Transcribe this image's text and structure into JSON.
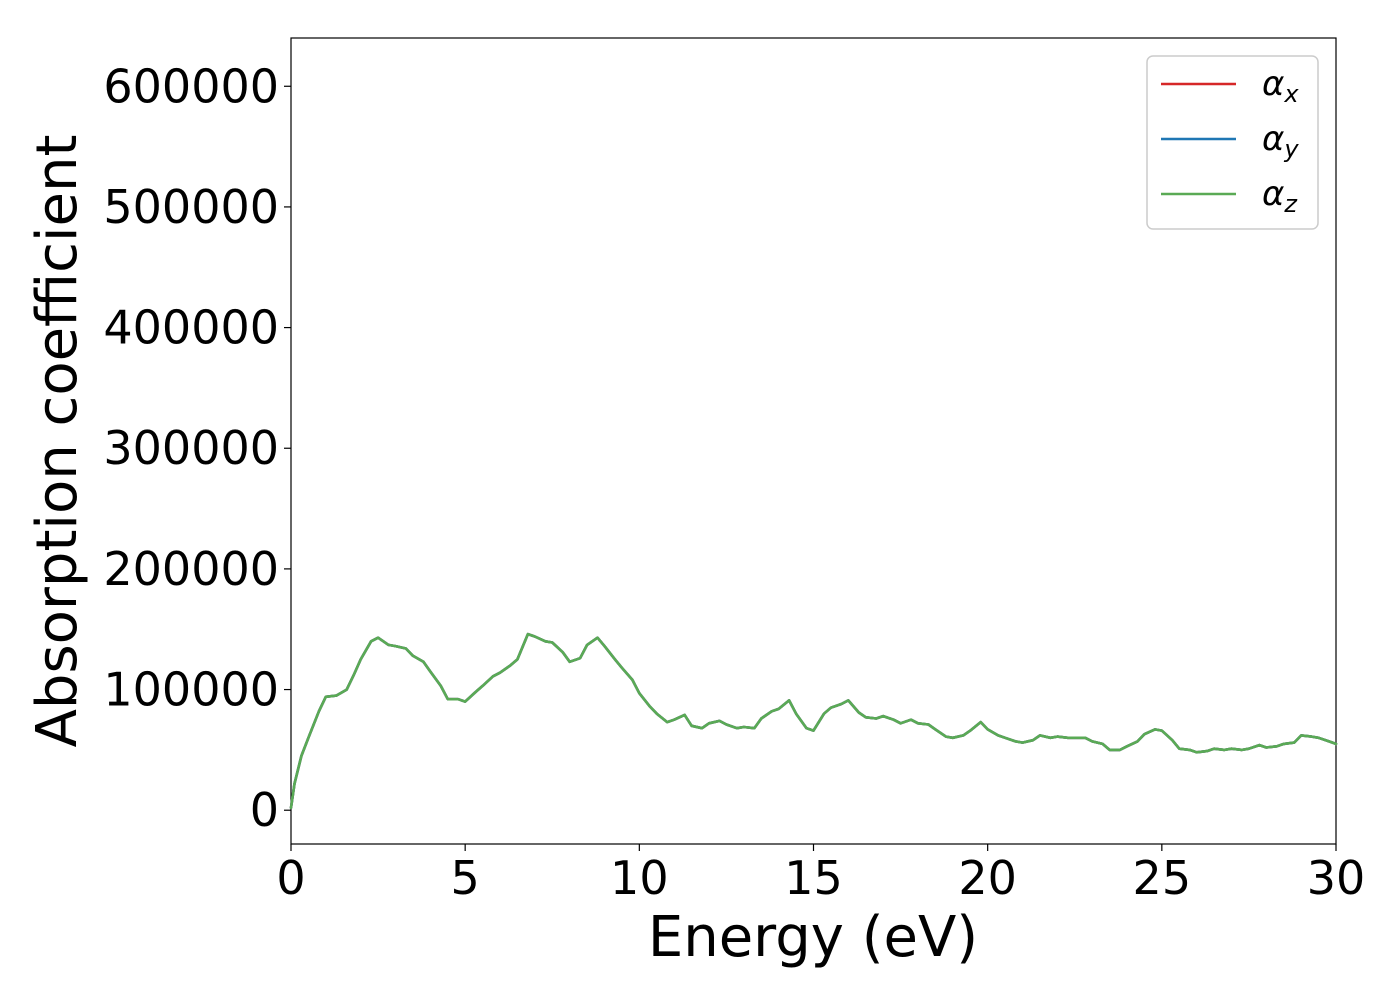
{
  "chart_data": {
    "type": "line",
    "title": "",
    "xlabel": "Energy (eV)",
    "ylabel": "Absorption coefficient",
    "xlim": [
      0,
      30
    ],
    "ylim": [
      -28000,
      640000
    ],
    "xticks": [
      0,
      5,
      10,
      15,
      20,
      25,
      30
    ],
    "yticks": [
      0,
      100000,
      200000,
      300000,
      400000,
      500000,
      600000
    ],
    "xtick_labels": [
      "0",
      "5",
      "10",
      "15",
      "20",
      "25",
      "30"
    ],
    "ytick_labels": [
      "0",
      "100000",
      "200000",
      "300000",
      "400000",
      "500000",
      "600000"
    ],
    "grid": false,
    "legend_position": "top-right",
    "x": [
      0,
      0.1,
      0.3,
      0.5,
      0.8,
      1.0,
      1.3,
      1.6,
      1.8,
      2.0,
      2.3,
      2.5,
      2.8,
      3.0,
      3.3,
      3.5,
      3.8,
      4.0,
      4.3,
      4.5,
      4.8,
      5.0,
      5.3,
      5.5,
      5.8,
      6.0,
      6.3,
      6.5,
      6.8,
      7.0,
      7.3,
      7.5,
      7.8,
      8.0,
      8.3,
      8.5,
      8.8,
      9.0,
      9.3,
      9.5,
      9.8,
      10.0,
      10.3,
      10.5,
      10.8,
      11.0,
      11.3,
      11.5,
      11.8,
      12.0,
      12.3,
      12.5,
      12.8,
      13.0,
      13.3,
      13.5,
      13.8,
      14.0,
      14.3,
      14.5,
      14.8,
      15.0,
      15.3,
      15.5,
      15.8,
      16.0,
      16.3,
      16.5,
      16.8,
      17.0,
      17.3,
      17.5,
      17.8,
      18.0,
      18.3,
      18.5,
      18.8,
      19.0,
      19.3,
      19.5,
      19.8,
      20.0,
      20.3,
      20.5,
      20.8,
      21.0,
      21.3,
      21.5,
      21.8,
      22.0,
      22.3,
      22.5,
      22.8,
      23.0,
      23.3,
      23.5,
      23.8,
      24.0,
      24.3,
      24.5,
      24.8,
      25.0,
      25.3,
      25.5,
      25.8,
      26.0,
      26.3,
      26.5,
      26.8,
      27.0,
      27.3,
      27.5,
      27.8,
      28.0,
      28.3,
      28.5,
      28.8,
      29.0,
      29.3,
      29.5,
      29.8,
      30.0
    ],
    "series": [
      {
        "name": "α_x",
        "color": "#d62728",
        "values": [
          2000,
          22000,
          45000,
          60000,
          82000,
          94000,
          95000,
          100000,
          112000,
          125000,
          140000,
          143000,
          137000,
          136000,
          134000,
          128000,
          123000,
          115000,
          103000,
          92000,
          92000,
          90000,
          98000,
          103000,
          111000,
          114000,
          120000,
          125000,
          146000,
          144000,
          140000,
          139000,
          131000,
          123000,
          126000,
          137000,
          143000,
          136000,
          125000,
          118000,
          108000,
          97000,
          86000,
          80000,
          73000,
          75000,
          79000,
          70000,
          68000,
          72000,
          74000,
          71000,
          68000,
          69000,
          68000,
          76000,
          82000,
          84000,
          91000,
          80000,
          68000,
          66000,
          80000,
          85000,
          88000,
          91000,
          81000,
          77000,
          76000,
          78000,
          75000,
          72000,
          75000,
          72000,
          71000,
          67000,
          61000,
          60000,
          62000,
          66000,
          73000,
          67000,
          62000,
          60000,
          57000,
          56000,
          58000,
          62000,
          60000,
          61000,
          60000,
          60000,
          60000,
          57000,
          55000,
          50000,
          50000,
          53000,
          57000,
          63000,
          67000,
          66000,
          58000,
          51000,
          50000,
          48000,
          49000,
          51000,
          50000,
          51000,
          50000,
          51000,
          54000,
          52000,
          53000,
          55000,
          56000,
          62000,
          61000,
          60000,
          57000,
          55000
        ]
      },
      {
        "name": "α_y",
        "color": "#1f77b4",
        "values": [
          2000,
          22000,
          45000,
          60000,
          82000,
          94000,
          95000,
          100000,
          112000,
          125000,
          140000,
          143000,
          137000,
          136000,
          134000,
          128000,
          123000,
          115000,
          103000,
          92000,
          92000,
          90000,
          98000,
          103000,
          111000,
          114000,
          120000,
          125000,
          146000,
          144000,
          140000,
          139000,
          131000,
          123000,
          126000,
          137000,
          143000,
          136000,
          125000,
          118000,
          108000,
          97000,
          86000,
          80000,
          73000,
          75000,
          79000,
          70000,
          68000,
          72000,
          74000,
          71000,
          68000,
          69000,
          68000,
          76000,
          82000,
          84000,
          91000,
          80000,
          68000,
          66000,
          80000,
          85000,
          88000,
          91000,
          81000,
          77000,
          76000,
          78000,
          75000,
          72000,
          75000,
          72000,
          71000,
          67000,
          61000,
          60000,
          62000,
          66000,
          73000,
          67000,
          62000,
          60000,
          57000,
          56000,
          58000,
          62000,
          60000,
          61000,
          60000,
          60000,
          60000,
          57000,
          55000,
          50000,
          50000,
          53000,
          57000,
          63000,
          67000,
          66000,
          58000,
          51000,
          50000,
          48000,
          49000,
          51000,
          50000,
          51000,
          50000,
          51000,
          54000,
          52000,
          53000,
          55000,
          56000,
          62000,
          61000,
          60000,
          57000,
          55000
        ]
      },
      {
        "name": "α_z",
        "color": "#5aaa55",
        "values": [
          2000,
          22000,
          45000,
          60000,
          82000,
          94000,
          95000,
          100000,
          112000,
          125000,
          140000,
          143000,
          137000,
          136000,
          134000,
          128000,
          123000,
          115000,
          103000,
          92000,
          92000,
          90000,
          98000,
          103000,
          111000,
          114000,
          120000,
          125000,
          146000,
          144000,
          140000,
          139000,
          131000,
          123000,
          126000,
          137000,
          143000,
          136000,
          125000,
          118000,
          108000,
          97000,
          86000,
          80000,
          73000,
          75000,
          79000,
          70000,
          68000,
          72000,
          74000,
          71000,
          68000,
          69000,
          68000,
          76000,
          82000,
          84000,
          91000,
          80000,
          68000,
          66000,
          80000,
          85000,
          88000,
          91000,
          81000,
          77000,
          76000,
          78000,
          75000,
          72000,
          75000,
          72000,
          71000,
          67000,
          61000,
          60000,
          62000,
          66000,
          73000,
          67000,
          62000,
          60000,
          57000,
          56000,
          58000,
          62000,
          60000,
          61000,
          60000,
          60000,
          60000,
          57000,
          55000,
          50000,
          50000,
          53000,
          57000,
          63000,
          67000,
          66000,
          58000,
          51000,
          50000,
          48000,
          49000,
          51000,
          50000,
          51000,
          50000,
          51000,
          54000,
          52000,
          53000,
          55000,
          56000,
          62000,
          61000,
          60000,
          57000,
          55000
        ]
      }
    ],
    "legend": [
      {
        "symbol": "α",
        "sub": "x"
      },
      {
        "symbol": "α",
        "sub": "y"
      },
      {
        "symbol": "α",
        "sub": "z"
      }
    ]
  }
}
